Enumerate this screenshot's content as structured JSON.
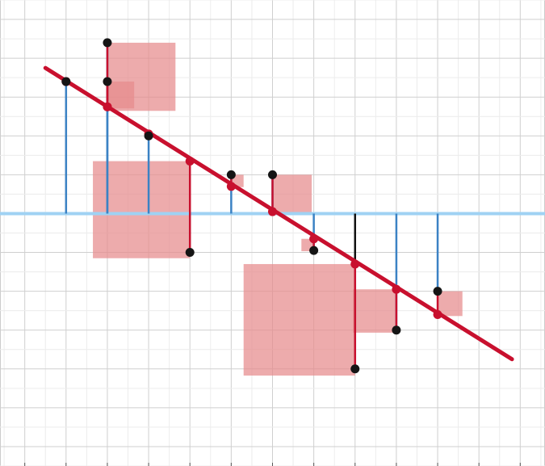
{
  "chart_data": {
    "type": "scatter",
    "title": "",
    "xlabel": "",
    "ylabel": "",
    "xlim": [
      -1.6,
      11.6
    ],
    "ylim": [
      -6.5,
      5.5
    ],
    "grid": true,
    "baseline_y": 0,
    "regression_line": {
      "x": [
        -0.5,
        10.8
      ],
      "y": [
        3.75,
        -3.75
      ]
    },
    "points": [
      {
        "x": 0,
        "y": 3.4,
        "fit": 3.4
      },
      {
        "x": 1,
        "y": 4.4,
        "fit": 2.75
      },
      {
        "x": 1,
        "y": 3.4,
        "fit": 2.75
      },
      {
        "x": 2,
        "y": 2.0,
        "fit": 2.05
      },
      {
        "x": 3,
        "y": -1.0,
        "fit": 1.35
      },
      {
        "x": 4,
        "y": 1.0,
        "fit": 0.7
      },
      {
        "x": 5,
        "y": 1.0,
        "fit": 0.05
      },
      {
        "x": 6,
        "y": -0.95,
        "fit": -0.65
      },
      {
        "x": 7,
        "y": -4.0,
        "fit": -1.3
      },
      {
        "x": 8,
        "y": -3.0,
        "fit": -1.95
      },
      {
        "x": 9,
        "y": -2.0,
        "fit": -2.6
      }
    ]
  },
  "colors": {
    "background": "#ffffff",
    "grid_minor": "#ececec",
    "grid_major": "#cfcfcf",
    "baseline": "#9fd2f3",
    "stem": "#3b82c4",
    "stem_dark": "#111111",
    "residual_line": "#c8102e",
    "residual_square": "#e68a8c",
    "regression": "#c8102e",
    "point": "#151515",
    "fit_point": "#c8102e"
  }
}
